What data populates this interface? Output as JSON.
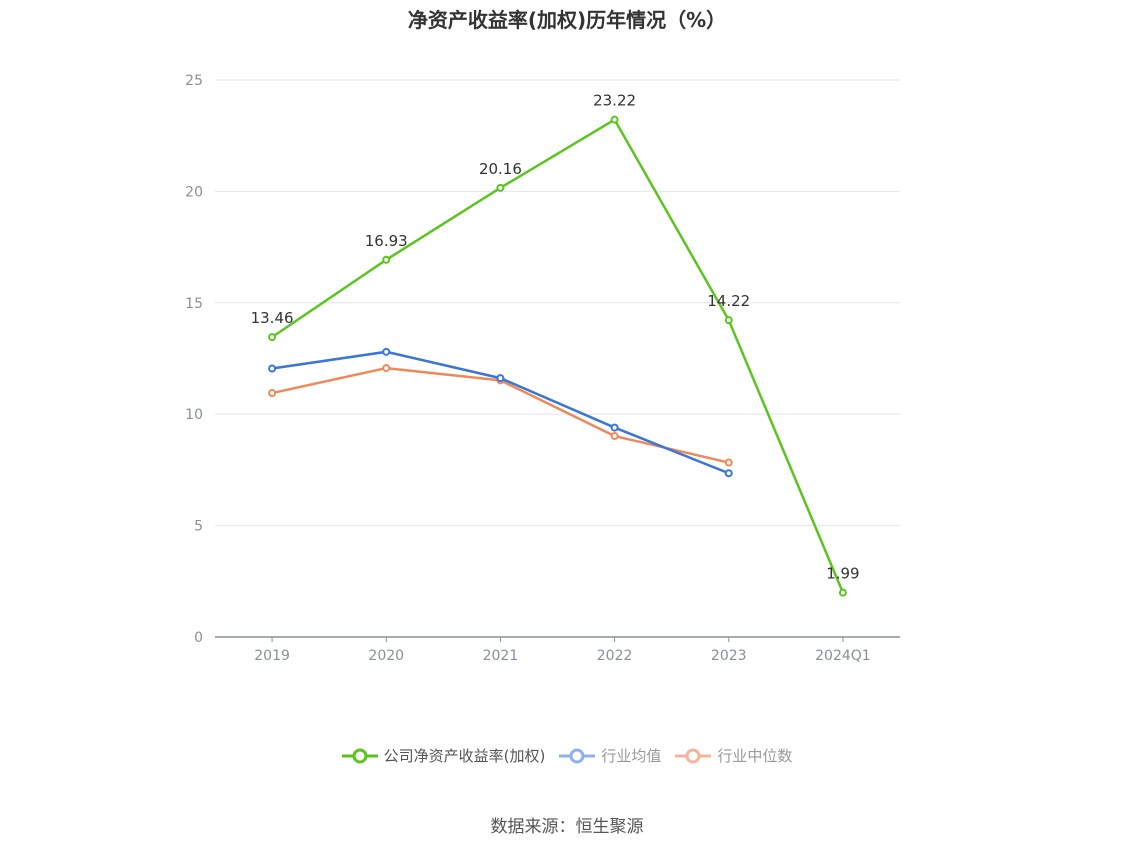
{
  "title": "净资产收益率(加权)历年情况（%）",
  "source": "数据来源：恒生聚源",
  "chart_data": {
    "type": "line",
    "categories": [
      "2019",
      "2020",
      "2021",
      "2022",
      "2023",
      "2024Q1"
    ],
    "ylim": [
      0,
      25
    ],
    "yticks": [
      0,
      5,
      10,
      15,
      20,
      25
    ],
    "grid": true,
    "legend_position": "bottom",
    "series": [
      {
        "name": "公司净资产收益率(加权)",
        "color": "#5ac51e",
        "values": [
          13.46,
          16.93,
          20.16,
          23.22,
          14.22,
          1.99
        ],
        "labels": [
          "13.46",
          "16.93",
          "20.16",
          "23.22",
          "14.22",
          "1.99"
        ]
      },
      {
        "name": "行业均值",
        "color": "#3a76d8",
        "values": [
          12.05,
          12.8,
          11.62,
          9.4,
          7.35,
          null
        ]
      },
      {
        "name": "行业中位数",
        "color": "#f0885a",
        "values": [
          10.95,
          12.07,
          11.52,
          9.02,
          7.83,
          null
        ]
      }
    ]
  },
  "legend": [
    {
      "label": "公司净资产收益率(加权)",
      "color": "#5ac51e",
      "active": true
    },
    {
      "label": "行业均值",
      "color": "#8fb0ea",
      "active": false
    },
    {
      "label": "行业中位数",
      "color": "#f7b49a",
      "active": false
    }
  ]
}
